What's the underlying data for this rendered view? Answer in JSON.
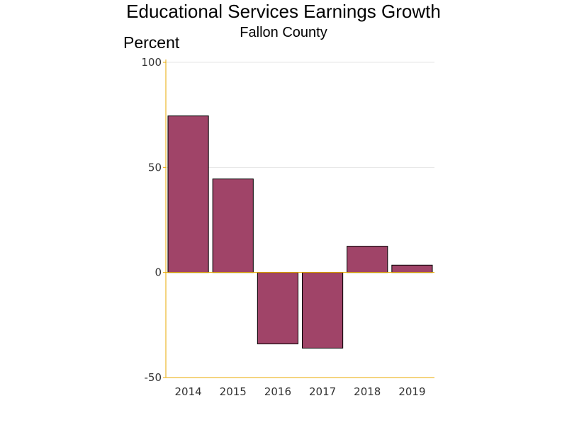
{
  "chart_data": {
    "type": "bar",
    "title": "Educational Services Earnings Growth",
    "subtitle": "Fallon County",
    "ylabel": "Percent",
    "xlabel": "",
    "categories": [
      "2014",
      "2015",
      "2016",
      "2017",
      "2018",
      "2019"
    ],
    "values": [
      74.5,
      44.5,
      -34,
      -36,
      12.5,
      3.5
    ],
    "ylim": [
      -50,
      100
    ],
    "yticks": [
      -50,
      0,
      50,
      100
    ],
    "grid": true,
    "colors": {
      "bar_fill": "#A04468",
      "bar_stroke": "#000000",
      "axis": "#E8A800",
      "grid": "#E4E4E4"
    }
  }
}
